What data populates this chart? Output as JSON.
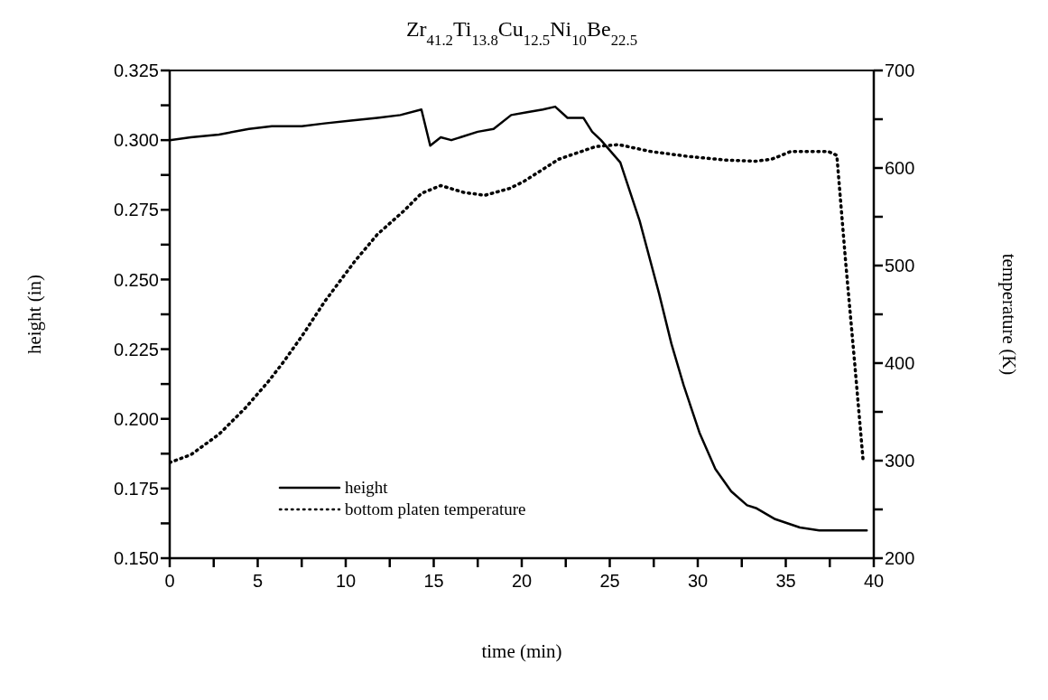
{
  "chart_data": {
    "type": "line",
    "title": "Zr$_{41.2}$Ti$_{13.8}$Cu$_{12.5}$Ni$_{10}$Be$_{22.5}$",
    "xlabel": "time (min)",
    "ylabel": "height (in)",
    "y2label": "temperature (K)",
    "xlim": [
      0,
      40
    ],
    "xticks": [
      0,
      {
        "value": 2.5,
        "label": null
      },
      5,
      {
        "value": 7.5,
        "label": null
      },
      10,
      {
        "value": 12.5,
        "label": null
      },
      15,
      {
        "value": 17.5,
        "label": null
      },
      20,
      {
        "value": 22.5,
        "label": null
      },
      25,
      {
        "value": 27.5,
        "label": null
      },
      30,
      {
        "value": 32.5,
        "label": null
      },
      35,
      {
        "value": 37.5,
        "label": null
      },
      40
    ],
    "ylim": [
      0.15,
      0.325
    ],
    "yticks": [
      {
        "value": 0.15,
        "label": "0.150"
      },
      {
        "value": 0.1625,
        "label": null
      },
      {
        "value": 0.175,
        "label": "0.175"
      },
      {
        "value": 0.1875,
        "label": null
      },
      {
        "value": 0.2,
        "label": "0.200"
      },
      {
        "value": 0.2125,
        "label": null
      },
      {
        "value": 0.225,
        "label": "0.225"
      },
      {
        "value": 0.2375,
        "label": null
      },
      {
        "value": 0.25,
        "label": "0.250"
      },
      {
        "value": 0.2625,
        "label": null
      },
      {
        "value": 0.275,
        "label": "0.275"
      },
      {
        "value": 0.2875,
        "label": null
      },
      {
        "value": 0.3,
        "label": "0.300"
      },
      {
        "value": 0.3125,
        "label": null
      },
      {
        "value": 0.325,
        "label": "0.325"
      }
    ],
    "y2lim": [
      200,
      700
    ],
    "y2ticks": [
      200,
      {
        "value": 250,
        "label": null
      },
      300,
      {
        "value": 350,
        "label": null
      },
      400,
      {
        "value": 450,
        "label": null
      },
      500,
      {
        "value": 550,
        "label": null
      },
      600,
      {
        "value": 650,
        "label": null
      },
      700
    ],
    "legend": "bottom left",
    "marker": "none",
    "series": [
      {
        "name": "height",
        "color": "#000000",
        "line_style": "solid",
        "x": [
          0,
          1.2,
          2.8,
          4.5,
          5.8,
          7.5,
          8.8,
          10.3,
          11.8,
          13.1,
          14.3,
          14.8,
          15.4,
          16,
          17.5,
          18.4,
          19.4,
          20.3,
          21.2,
          21.9,
          22.6,
          23.5,
          24,
          24.5,
          25.6,
          26.7,
          27.8,
          28.5,
          29.2,
          30.1,
          31,
          31.9,
          32.8,
          33.3,
          34.4,
          35.8,
          36.9,
          39.6
        ],
        "values": [
          0.3,
          0.301,
          0.302,
          0.304,
          0.305,
          0.305,
          0.306,
          0.307,
          0.308,
          0.309,
          0.311,
          0.298,
          0.301,
          0.3,
          0.303,
          0.304,
          0.309,
          0.31,
          0.311,
          0.312,
          0.308,
          0.308,
          0.303,
          0.3,
          0.292,
          0.271,
          0.245,
          0.227,
          0.212,
          0.195,
          0.182,
          0.174,
          0.169,
          0.168,
          0.164,
          0.161,
          0.16,
          0.16
        ]
      },
      {
        "name": "bottom platen temperature",
        "color": "#000000",
        "line_style": "dotted",
        "axis": "y2",
        "x": [
          0,
          1.2,
          2.8,
          4.3,
          5.6,
          6.5,
          7.6,
          8.8,
          10.5,
          11.8,
          13.3,
          14.3,
          15.4,
          16.7,
          17.9,
          19.3,
          20.1,
          22.1,
          24.2,
          25.5,
          27.3,
          29.4,
          31.7,
          33.3,
          34.2,
          35.3,
          37.4,
          37.9,
          38.4,
          38.9,
          39.4
        ],
        "values": [
          298,
          306,
          327,
          354,
          381,
          402,
          430,
          463,
          504,
          532,
          556,
          574,
          582,
          575,
          572,
          579,
          586,
          609,
          622,
          624,
          617,
          612,
          608,
          607,
          609,
          617,
          617,
          613,
          504,
          403,
          299
        ]
      }
    ]
  }
}
